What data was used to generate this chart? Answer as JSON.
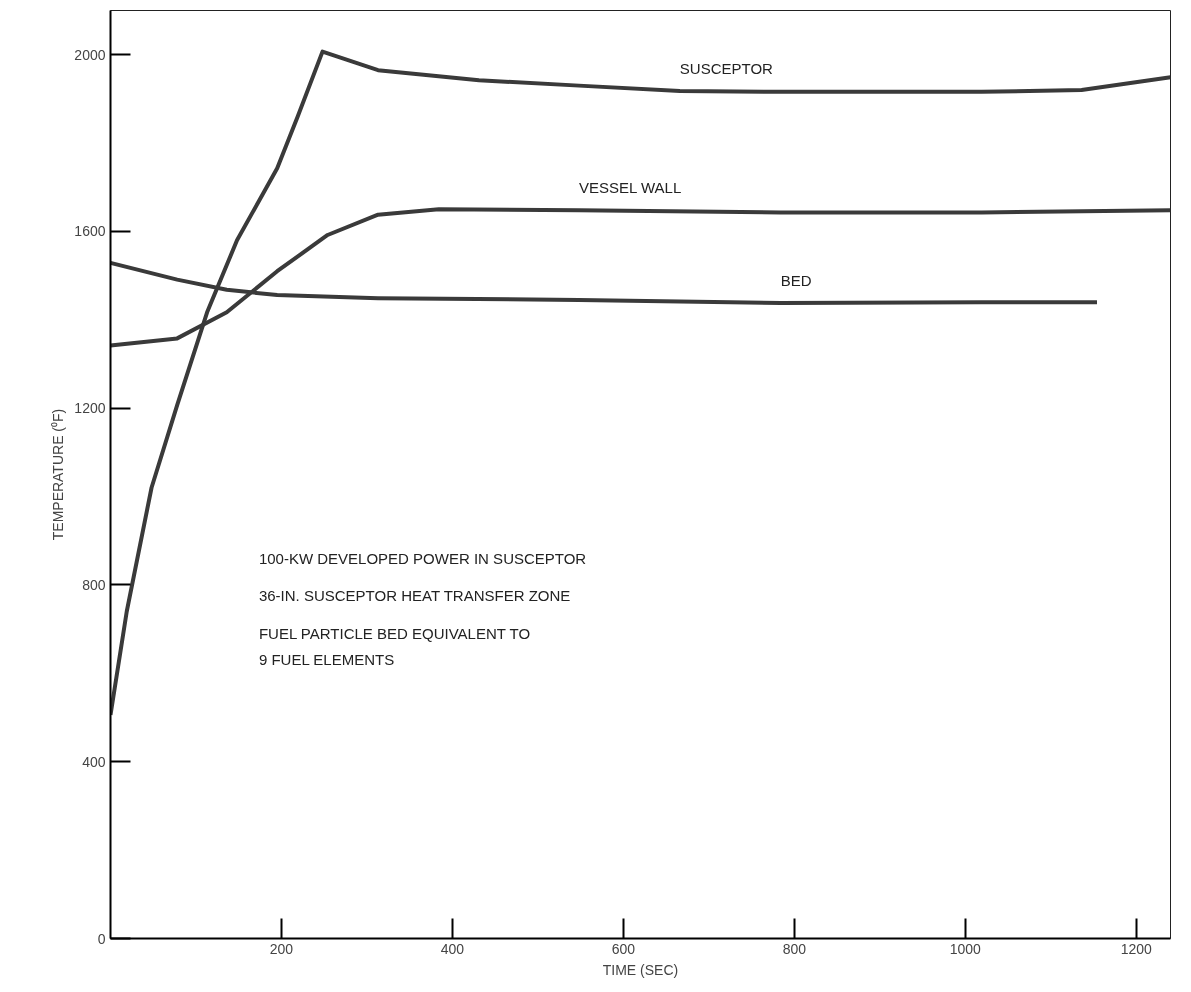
{
  "chart_data": {
    "type": "line",
    "xlabel": "TIME (SEC)",
    "ylabel": "TEMPERATURE (⁰F)",
    "xlim": [
      0,
      1240
    ],
    "ylim": [
      0,
      2100
    ],
    "xticks": [
      200,
      400,
      600,
      800,
      1000,
      1200
    ],
    "yticks": [
      0,
      400,
      800,
      1200,
      1600,
      2000
    ],
    "grid": false,
    "marker": "none",
    "line_style": "solid",
    "series": [
      {
        "name": "SUSCEPTOR",
        "color": "#3a3a3a",
        "x": [
          0,
          19,
          48,
          78,
          113,
          148,
          195,
          219,
          248,
          313,
          431,
          548,
          666,
          784,
          901,
          1019,
          1136,
          1240
        ],
        "values": [
          506,
          740,
          1020,
          1207,
          1417,
          1580,
          1743,
          1860,
          2007,
          1965,
          1942,
          1930,
          1918,
          1916,
          1916,
          1916,
          1920,
          1949
        ]
      },
      {
        "name": "VESSEL WALL",
        "color": "#3a3a3a",
        "x": [
          0,
          78,
          136,
          195,
          254,
          313,
          384,
          548,
          784,
          1019,
          1240
        ],
        "values": [
          1342,
          1358,
          1417,
          1510,
          1592,
          1638,
          1650,
          1648,
          1643,
          1643,
          1648
        ]
      },
      {
        "name": "BED",
        "color": "#3a3a3a",
        "x": [
          0,
          78,
          136,
          195,
          313,
          548,
          784,
          1019,
          1154
        ],
        "values": [
          1529,
          1491,
          1468,
          1456,
          1449,
          1445,
          1438,
          1440,
          1440
        ]
      }
    ],
    "annotations": [
      "100-KW DEVELOPED POWER IN SUSCEPTOR",
      "36-IN. SUSCEPTOR HEAT TRANSFER ZONE",
      "FUEL PARTICLE BED EQUIVALENT TO\n9 FUEL ELEMENTS"
    ]
  }
}
